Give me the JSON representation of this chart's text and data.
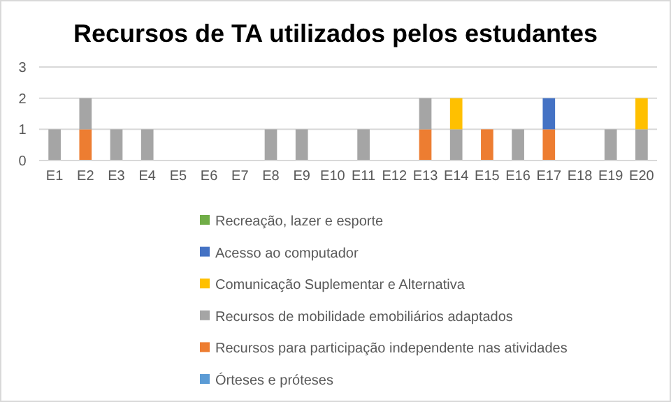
{
  "chart_data": {
    "type": "bar",
    "title": "Recursos de TA utilizados pelos estudantes",
    "stacked": true,
    "categories": [
      "E1",
      "E2",
      "E3",
      "E4",
      "E5",
      "E6",
      "E7",
      "E8",
      "E9",
      "E10",
      "E11",
      "E12",
      "E13",
      "E14",
      "E15",
      "E16",
      "E17",
      "E18",
      "E19",
      "E20"
    ],
    "series": [
      {
        "name": "Órteses e próteses",
        "color": "#5b9bd5",
        "values": [
          0,
          0,
          0,
          0,
          0,
          0,
          0,
          0,
          0,
          0,
          0,
          0,
          0,
          0,
          0,
          0,
          0,
          0,
          0,
          0
        ]
      },
      {
        "name": "Recursos para participação independente nas atividades",
        "color": "#ed7d31",
        "values": [
          0,
          1,
          0,
          0,
          0,
          0,
          0,
          0,
          0,
          0,
          0,
          0,
          1,
          0,
          1,
          0,
          1,
          0,
          0,
          0
        ]
      },
      {
        "name": "Recursos de mobilidade emobiliários adaptados",
        "color": "#a5a5a5",
        "values": [
          1,
          1,
          1,
          1,
          0,
          0,
          0,
          1,
          1,
          0,
          1,
          0,
          1,
          1,
          0,
          1,
          0,
          0,
          1,
          1
        ]
      },
      {
        "name": "Comunicação Suplementar e Alternativa",
        "color": "#ffc000",
        "values": [
          0,
          0,
          0,
          0,
          0,
          0,
          0,
          0,
          0,
          0,
          0,
          0,
          0,
          1,
          0,
          0,
          0,
          0,
          0,
          1
        ]
      },
      {
        "name": "Acesso ao computador",
        "color": "#4472c4",
        "values": [
          0,
          0,
          0,
          0,
          0,
          0,
          0,
          0,
          0,
          0,
          0,
          0,
          0,
          0,
          0,
          0,
          1,
          0,
          0,
          0
        ]
      },
      {
        "name": "Recreação, lazer e esporte",
        "color": "#70ad47",
        "values": [
          0,
          0,
          0,
          0,
          0,
          0,
          0,
          0,
          0,
          0,
          0,
          0,
          0,
          0,
          0,
          0,
          0,
          0,
          0,
          0
        ]
      }
    ],
    "ylim": [
      0,
      3
    ],
    "yticks": [
      0,
      1,
      2,
      3
    ],
    "grid": "y",
    "legend": "bottom"
  }
}
